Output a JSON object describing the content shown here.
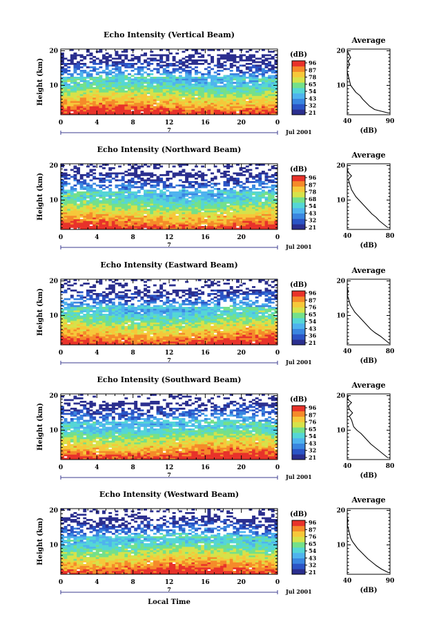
{
  "colors": {
    "scale": [
      "#2b2f8f",
      "#2b55c6",
      "#3a86e0",
      "#4fb3ee",
      "#55d6d6",
      "#74e08a",
      "#d6e24a",
      "#f6c83a",
      "#f58a2a",
      "#e8322a"
    ],
    "axis": "#000000",
    "time_axis": "#3b3b8f",
    "profile": "#000000"
  },
  "chart_data": [
    {
      "type": "heatmap",
      "beam": "vertical",
      "title": "Echo Intensity (Vertical Beam)",
      "ylabel": "Height (km)",
      "x_ticks": [
        "0",
        "4",
        "8",
        "12",
        "16",
        "20",
        "0"
      ],
      "x_range": [
        0,
        24
      ],
      "y_ticks": [
        "20",
        "10"
      ],
      "y_range": [
        1.5,
        20.5
      ],
      "date_mark": "7",
      "month_label": "Jul 2001",
      "colorbar": {
        "unit": "(dB)",
        "levels": [
          "96",
          "87",
          "78",
          "65",
          "54",
          "43",
          "32",
          "21"
        ]
      },
      "top_height_km": 18.8,
      "profile": {
        "title": "Average",
        "xlabel": "(dB)",
        "x_ticks": [
          "40",
          "90"
        ],
        "xlim": [
          40,
          90
        ],
        "y_ticks": [
          "20",
          "10"
        ],
        "heights_km": [
          2,
          3,
          4,
          5,
          6,
          7,
          8,
          9,
          10,
          11,
          12,
          13,
          14,
          15,
          16,
          17,
          18,
          19,
          20
        ],
        "values_db": [
          88,
          72,
          66,
          62,
          58,
          55,
          50,
          47,
          44,
          43,
          42,
          41,
          40,
          40,
          43,
          41,
          44,
          42,
          40
        ]
      }
    },
    {
      "type": "heatmap",
      "beam": "northward",
      "title": "Echo Intensity (Northward Beam)",
      "ylabel": "Height (km)",
      "x_ticks": [
        "0",
        "4",
        "8",
        "12",
        "16",
        "20",
        "0"
      ],
      "x_range": [
        0,
        24
      ],
      "y_ticks": [
        "20",
        "10"
      ],
      "y_range": [
        1.5,
        20.5
      ],
      "date_mark": "7",
      "month_label": "Jul 2001",
      "colorbar": {
        "unit": "(dB)",
        "levels": [
          "96",
          "87",
          "78",
          "68",
          "54",
          "43",
          "32",
          "21"
        ]
      },
      "top_height_km": 17.8,
      "profile": {
        "title": "Average",
        "xlabel": "(dB)",
        "x_ticks": [
          "40",
          "80"
        ],
        "xlim": [
          40,
          80
        ],
        "y_ticks": [
          "20",
          "10"
        ],
        "heights_km": [
          2,
          3,
          4,
          5,
          6,
          7,
          8,
          9,
          10,
          11,
          12,
          13,
          14,
          15,
          16,
          17,
          18,
          19,
          20
        ],
        "values_db": [
          78,
          74,
          70,
          67,
          63,
          60,
          57,
          54,
          51,
          48,
          46,
          44,
          43,
          42,
          41,
          44,
          41,
          40,
          40
        ]
      }
    },
    {
      "type": "heatmap",
      "beam": "eastward",
      "title": "Echo Intensity (Eastward Beam)",
      "ylabel": "Height (km)",
      "x_ticks": [
        "0",
        "4",
        "8",
        "12",
        "16",
        "20",
        "0"
      ],
      "x_range": [
        0,
        24
      ],
      "y_ticks": [
        "20",
        "10"
      ],
      "y_range": [
        1.5,
        20.5
      ],
      "date_mark": "7",
      "month_label": "Jul 2001",
      "colorbar": {
        "unit": "(dB)",
        "levels": [
          "96",
          "87",
          "76",
          "65",
          "54",
          "43",
          "36",
          "21"
        ]
      },
      "top_height_km": 17.5,
      "profile": {
        "title": "Average",
        "xlabel": "(dB)",
        "x_ticks": [
          "40",
          "80"
        ],
        "xlim": [
          40,
          80
        ],
        "y_ticks": [
          "20",
          "10"
        ],
        "heights_km": [
          2,
          3,
          4,
          5,
          6,
          7,
          8,
          9,
          10,
          11,
          12,
          13,
          14,
          15,
          16,
          17,
          18,
          19,
          20
        ],
        "values_db": [
          79,
          75,
          71,
          66,
          62,
          59,
          56,
          53,
          50,
          47,
          45,
          43,
          42,
          41,
          40,
          41,
          39,
          40,
          39
        ]
      }
    },
    {
      "type": "heatmap",
      "beam": "southward",
      "title": "Echo Intensity (Southward Beam)",
      "ylabel": "Height (km)",
      "x_ticks": [
        "0",
        "4",
        "8",
        "12",
        "16",
        "20",
        "0"
      ],
      "x_range": [
        0,
        24
      ],
      "y_ticks": [
        "20",
        "10"
      ],
      "y_range": [
        1.5,
        20.5
      ],
      "date_mark": "7",
      "month_label": "Jul 2001",
      "colorbar": {
        "unit": "(dB)",
        "levels": [
          "96",
          "87",
          "76",
          "65",
          "54",
          "43",
          "32",
          "21"
        ]
      },
      "top_height_km": 17.8,
      "profile": {
        "title": "Average",
        "xlabel": "(dB)",
        "x_ticks": [
          "40",
          "80"
        ],
        "xlim": [
          40,
          80
        ],
        "y_ticks": [
          "20",
          "10"
        ],
        "heights_km": [
          2,
          3,
          4,
          5,
          6,
          7,
          8,
          9,
          10,
          11,
          12,
          13,
          14,
          15,
          16,
          17,
          18,
          19,
          20
        ],
        "values_db": [
          78,
          74,
          70,
          66,
          62,
          59,
          56,
          53,
          49,
          46,
          45,
          44,
          42,
          45,
          42,
          41,
          44,
          40,
          41
        ]
      }
    },
    {
      "type": "heatmap",
      "beam": "westward",
      "title": "Echo Intensity (Westward Beam)",
      "ylabel": "Height (km)",
      "xlabel": "Local Time",
      "x_ticks": [
        "0",
        "4",
        "8",
        "12",
        "16",
        "20",
        "0"
      ],
      "x_range": [
        0,
        24
      ],
      "y_ticks": [
        "20",
        "10"
      ],
      "y_range": [
        1.5,
        20.5
      ],
      "date_mark": "7",
      "month_label": "Jul 2001",
      "colorbar": {
        "unit": "(dB)",
        "levels": [
          "96",
          "87",
          "76",
          "65",
          "54",
          "43",
          "32",
          "21"
        ]
      },
      "top_height_km": 17.8,
      "profile": {
        "title": "Average",
        "xlabel": "(dB)",
        "x_ticks": [
          "40",
          "90"
        ],
        "xlim": [
          40,
          90
        ],
        "y_ticks": [
          "20",
          "10"
        ],
        "heights_km": [
          2,
          3,
          4,
          5,
          6,
          7,
          8,
          9,
          10,
          11,
          12,
          13,
          14,
          15,
          16,
          17,
          18,
          19,
          20
        ],
        "values_db": [
          88,
          80,
          74,
          69,
          64,
          60,
          56,
          52,
          49,
          46,
          44,
          43,
          42,
          41,
          40,
          41,
          40,
          39,
          40
        ]
      }
    }
  ]
}
